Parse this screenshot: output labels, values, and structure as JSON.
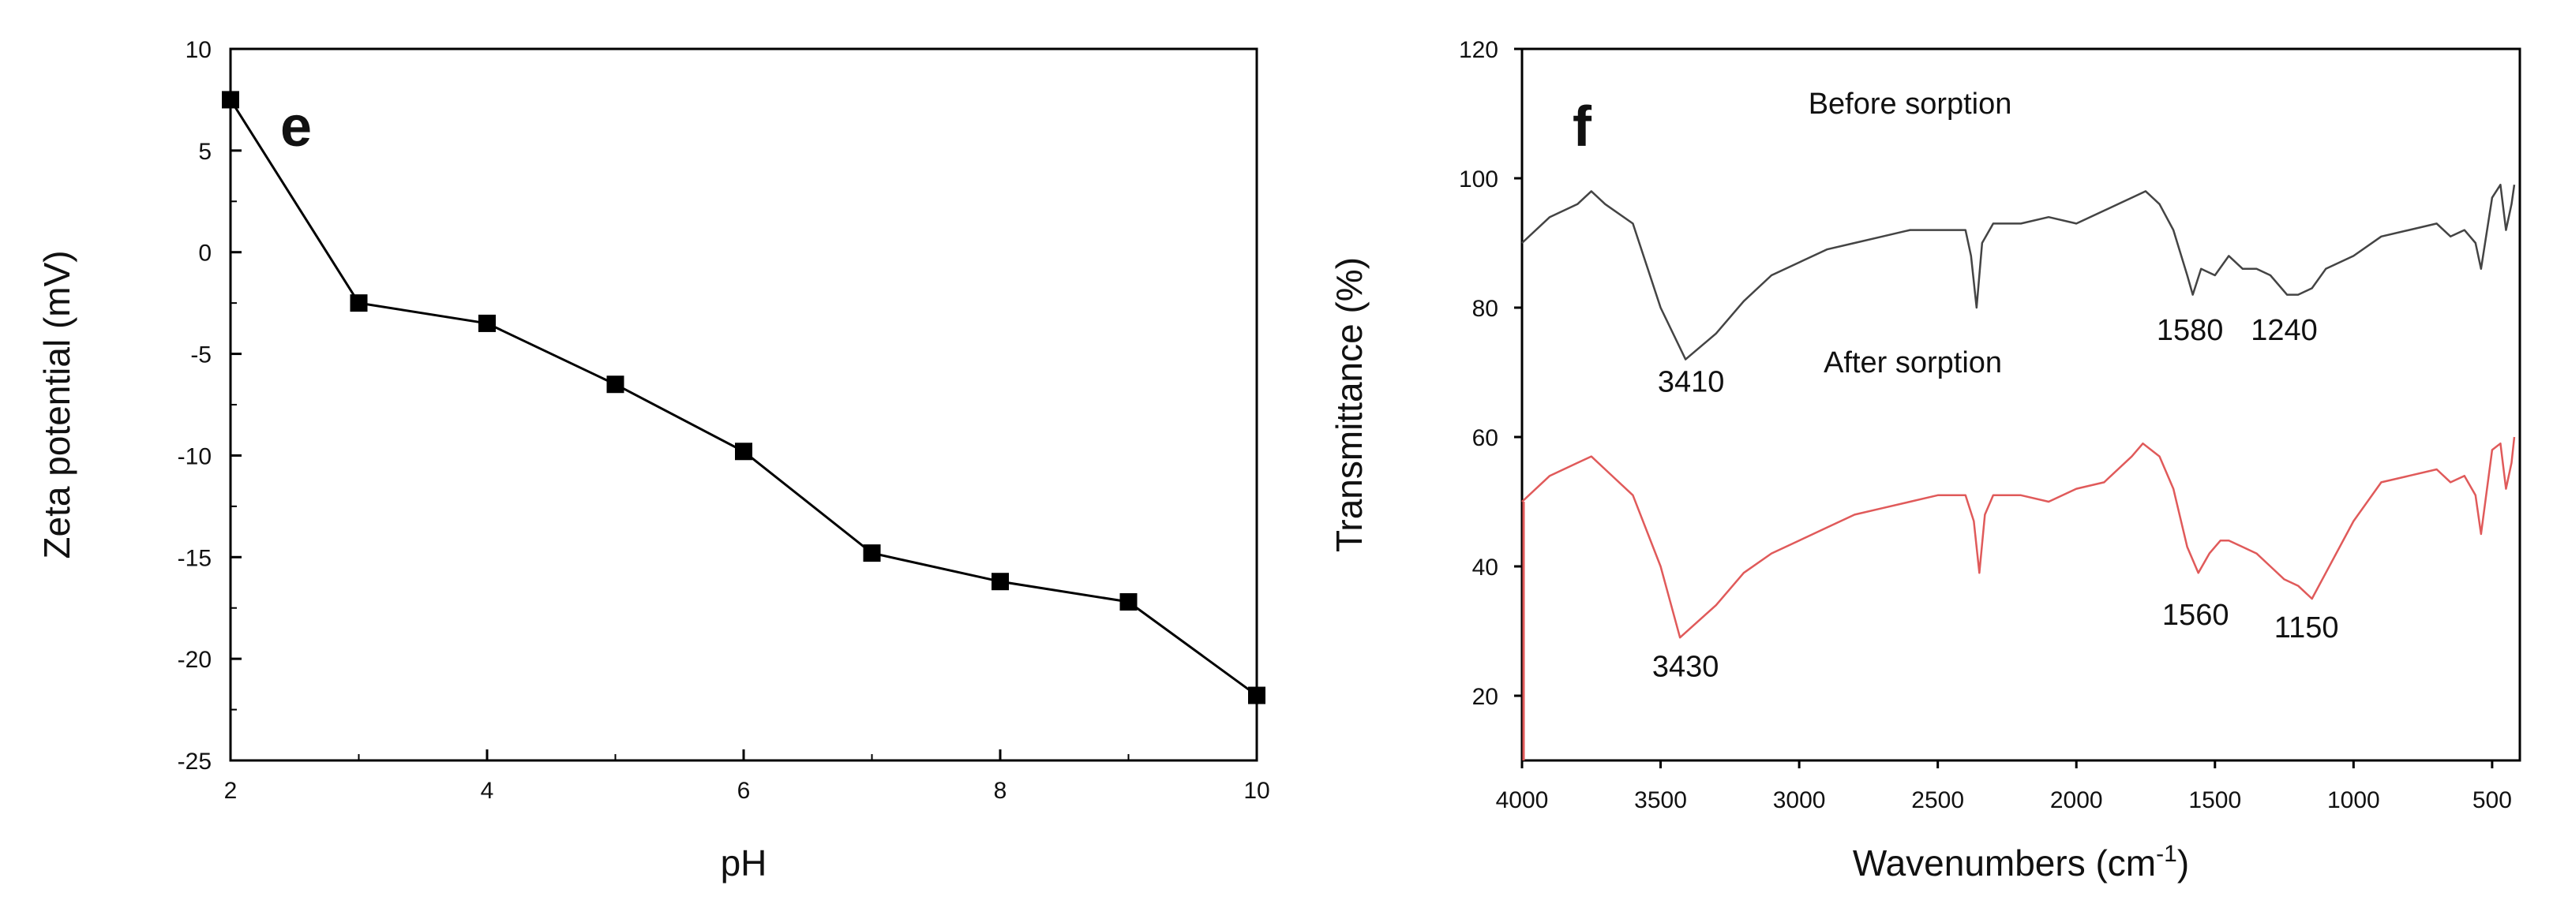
{
  "chart_data": [
    {
      "type": "line",
      "panel_label": "e",
      "xlabel": "pH",
      "ylabel": "Zeta potential (mV)",
      "xlim": [
        2,
        10
      ],
      "ylim": [
        -25,
        10
      ],
      "xticks": [
        2,
        4,
        6,
        8,
        10
      ],
      "yticks": [
        10,
        5,
        0,
        -5,
        -10,
        -15,
        -20,
        -25
      ],
      "xtick_labels": [
        "2",
        "4",
        "6",
        "8",
        "10"
      ],
      "ytick_labels": [
        "10",
        "5",
        "0",
        "-5",
        "-10",
        "-15",
        "-20",
        "-25"
      ],
      "grid": false,
      "series": [
        {
          "name": "Zeta potential",
          "marker": "square",
          "color": "#000000",
          "x": [
            2,
            3,
            4,
            5,
            6,
            7,
            8,
            9,
            10
          ],
          "y": [
            7.5,
            -2.5,
            -3.5,
            -6.5,
            -9.8,
            -14.8,
            -16.2,
            -17.2,
            -21.8
          ]
        }
      ]
    },
    {
      "type": "line",
      "panel_label": "f",
      "xlabel_main": "Wavenumbers (cm",
      "xlabel_sup": "-1",
      "xlabel_end": ")",
      "ylabel": "Transmittance (%)",
      "xlim": [
        4000,
        400
      ],
      "ylim": [
        10,
        120
      ],
      "xticks": [
        4000,
        3500,
        3000,
        2500,
        2000,
        1500,
        1000,
        500
      ],
      "yticks": [
        20,
        40,
        60,
        80,
        100,
        120
      ],
      "xtick_labels": [
        "4000",
        "3500",
        "3000",
        "2500",
        "2000",
        "1500",
        "1000",
        "500"
      ],
      "ytick_labels": [
        "20",
        "40",
        "60",
        "80",
        "100",
        "120"
      ],
      "grid": false,
      "series": [
        {
          "name": "Before sorption",
          "color": "#444444",
          "x": [
            4000,
            3900,
            3800,
            3750,
            3700,
            3600,
            3500,
            3410,
            3300,
            3200,
            3100,
            3000,
            2900,
            2800,
            2700,
            2600,
            2500,
            2400,
            2380,
            2360,
            2340,
            2300,
            2200,
            2100,
            2000,
            1900,
            1800,
            1750,
            1700,
            1650,
            1600,
            1580,
            1550,
            1500,
            1450,
            1400,
            1350,
            1300,
            1240,
            1200,
            1150,
            1100,
            1000,
            900,
            800,
            700,
            650,
            600,
            560,
            540,
            500,
            470,
            450,
            430,
            420
          ],
          "y": [
            90,
            94,
            96,
            98,
            96,
            93,
            80,
            72,
            76,
            81,
            85,
            87,
            89,
            90,
            91,
            92,
            92,
            92,
            88,
            80,
            90,
            93,
            93,
            94,
            93,
            95,
            97,
            98,
            96,
            92,
            85,
            82,
            86,
            85,
            88,
            86,
            86,
            85,
            82,
            82,
            83,
            86,
            88,
            91,
            92,
            93,
            91,
            92,
            90,
            86,
            97,
            99,
            92,
            96,
            99
          ]
        },
        {
          "name": "After sorption",
          "color": "#e05a5a",
          "x": [
            4000,
            3900,
            3800,
            3750,
            3700,
            3600,
            3500,
            3430,
            3300,
            3200,
            3100,
            3000,
            2900,
            2800,
            2700,
            2600,
            2500,
            2400,
            2370,
            2350,
            2330,
            2300,
            2200,
            2100,
            2000,
            1900,
            1800,
            1760,
            1700,
            1650,
            1600,
            1560,
            1520,
            1480,
            1450,
            1400,
            1350,
            1300,
            1250,
            1200,
            1150,
            1100,
            1000,
            900,
            800,
            700,
            650,
            600,
            560,
            540,
            500,
            470,
            450,
            430,
            420
          ],
          "y": [
            50,
            54,
            56,
            57,
            55,
            51,
            40,
            29,
            34,
            39,
            42,
            44,
            46,
            48,
            49,
            50,
            51,
            51,
            47,
            39,
            48,
            51,
            51,
            50,
            52,
            53,
            57,
            59,
            57,
            52,
            43,
            39,
            42,
            44,
            44,
            43,
            42,
            40,
            38,
            37,
            35,
            39,
            47,
            53,
            54,
            55,
            53,
            54,
            51,
            45,
            58,
            59,
            52,
            56,
            60
          ]
        }
      ],
      "annotations": [
        {
          "text": "3410",
          "x": 3390,
          "y": 67
        },
        {
          "text": "1580",
          "x": 1590,
          "y": 75
        },
        {
          "text": "1240",
          "x": 1250,
          "y": 75
        },
        {
          "text": "3430",
          "x": 3410,
          "y": 23
        },
        {
          "text": "1560",
          "x": 1570,
          "y": 31
        },
        {
          "text": "1150",
          "x": 1170,
          "y": 29
        },
        {
          "text": "Before sorption",
          "x": 2600,
          "y": 110
        },
        {
          "text": "After sorption",
          "x": 2590,
          "y": 70
        }
      ]
    }
  ]
}
